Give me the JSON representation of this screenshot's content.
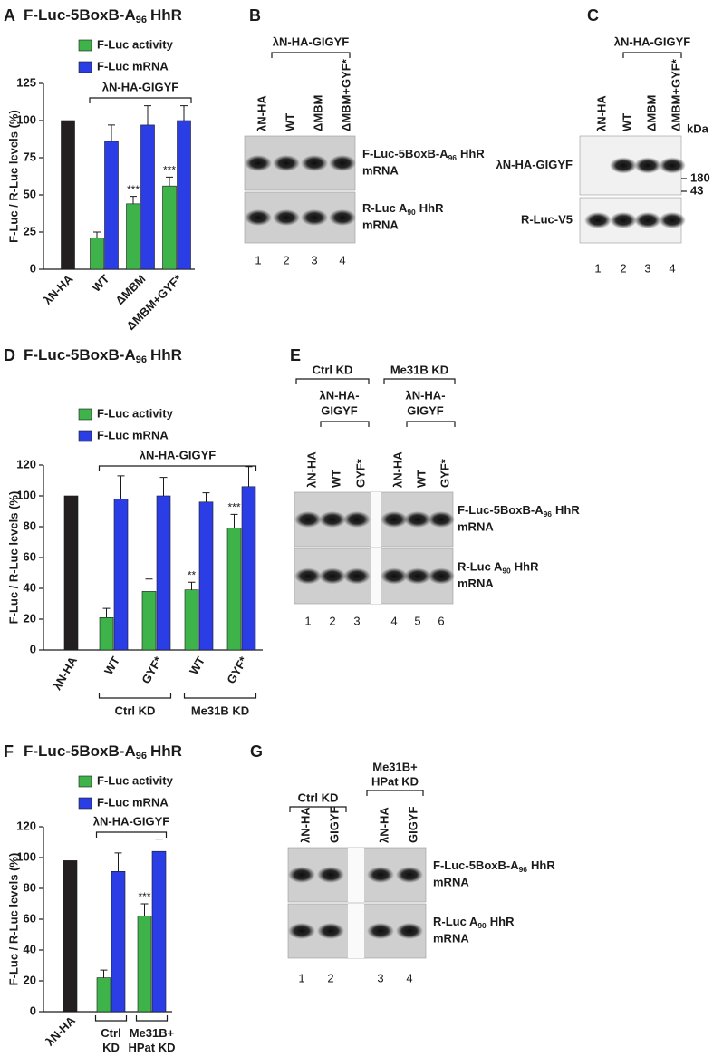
{
  "chart_data": [
    {
      "type": "bar",
      "panel": "A",
      "title": {
        "pre": "F-Luc-5BoxB-A",
        "sub": "96",
        "post": "HhR"
      },
      "y_label": "F-Luc / R-Luc levels (%)",
      "ylim": [
        0,
        125
      ],
      "yticks": [
        0,
        25,
        50,
        75,
        100,
        125
      ],
      "categories": [
        "λN-HA",
        "WT",
        "ΔMBM",
        "ΔMBM+GYF*"
      ],
      "series": [
        {
          "name": "F-Luc activity",
          "color": "#3db34a",
          "bar_colors": [
            "#231f20",
            "#3db34a",
            "#3db34a",
            "#3db34a"
          ],
          "values": [
            100,
            21,
            44,
            56
          ],
          "errors": [
            null,
            4,
            5,
            6
          ]
        },
        {
          "name": "F-Luc mRNA",
          "color": "#2b3ee6",
          "values": [
            null,
            86,
            97,
            100
          ],
          "errors": [
            null,
            11,
            13,
            10
          ]
        }
      ],
      "annotations": [
        null,
        null,
        "***",
        "***"
      ],
      "bracket_label": "λN-HA-GIGYF"
    },
    {
      "type": "bar",
      "panel": "D",
      "title": {
        "pre": "F-Luc-5BoxB-A",
        "sub": "96",
        "post": "HhR"
      },
      "y_label": "F-Luc / R-Luc levels (%)",
      "ylim": [
        0,
        120
      ],
      "yticks": [
        0,
        20,
        40,
        60,
        80,
        100,
        120
      ],
      "categories": [
        "λN-HA",
        "WT",
        "GYF*",
        "WT",
        "GYF*"
      ],
      "series": [
        {
          "name": "F-Luc activity",
          "color": "#3db34a",
          "bar_colors": [
            "#231f20",
            "#3db34a",
            "#3db34a",
            "#3db34a",
            "#3db34a"
          ],
          "values": [
            100,
            21,
            38,
            39,
            79
          ],
          "errors": [
            null,
            6,
            8,
            5,
            9
          ]
        },
        {
          "name": "F-Luc mRNA",
          "color": "#2b3ee6",
          "values": [
            null,
            98,
            100,
            96,
            106
          ],
          "errors": [
            null,
            15,
            12,
            6,
            13
          ]
        }
      ],
      "annotations": [
        null,
        null,
        null,
        "**",
        "***"
      ],
      "bracket_label": "λN-HA-GIGYF",
      "groups": [
        "Ctrl KD",
        "Me31B KD"
      ]
    },
    {
      "type": "bar",
      "panel": "F",
      "title": {
        "pre": "F-Luc-5BoxB-A",
        "sub": "96",
        "post": "HhR"
      },
      "y_label": "F-Luc / R-Luc levels (%)",
      "ylim": [
        0,
        120
      ],
      "yticks": [
        0,
        20,
        40,
        60,
        80,
        100,
        120
      ],
      "categories": [
        "λN-HA",
        "Ctrl KD",
        "Me31B+ HPat KD"
      ],
      "series": [
        {
          "name": "F-Luc activity",
          "color": "#3db34a",
          "bar_colors": [
            "#231f20",
            "#3db34a",
            "#3db34a"
          ],
          "values": [
            98,
            22,
            62
          ],
          "errors": [
            null,
            5,
            8
          ]
        },
        {
          "name": "F-Luc mRNA",
          "color": "#2b3ee6",
          "values": [
            null,
            91,
            104
          ],
          "errors": [
            null,
            12,
            8
          ]
        }
      ],
      "annotations": [
        null,
        null,
        "***"
      ],
      "bracket_label": "λN-HA-GIGYF"
    }
  ],
  "blots": [
    {
      "panel": "B",
      "header": "λN-HA-GIGYF",
      "lanes": [
        "λN-HA",
        "WT",
        "ΔMBM",
        "ΔMBM+GYF*"
      ],
      "rows": [
        {
          "pre": "F-Luc-5BoxB-A",
          "sub": "96",
          "post": "HhR",
          "line2": "mRNA",
          "bands": [
            true,
            true,
            true,
            true
          ]
        },
        {
          "pre": "R-Luc A",
          "sub": "90",
          "post": "HhR",
          "line2": "mRNA",
          "bands": [
            true,
            true,
            true,
            true
          ]
        }
      ],
      "lane_numbers": [
        1,
        2,
        3,
        4
      ]
    },
    {
      "panel": "C",
      "header": "λN-HA-GIGYF",
      "lanes": [
        "λN-HA",
        "WT",
        "ΔMBM",
        "ΔMBM+GYF*"
      ],
      "unit": "kDa",
      "rows": [
        {
          "label": "λN-HA-GIGYF",
          "marker": 180,
          "bands": [
            false,
            true,
            true,
            true
          ]
        },
        {
          "label": "R-Luc-V5",
          "marker": 43,
          "bands": [
            true,
            true,
            true,
            true
          ]
        }
      ],
      "lane_numbers": [
        1,
        2,
        3,
        4
      ]
    },
    {
      "panel": "E",
      "groups": [
        {
          "lines": [
            "Ctrl KD"
          ],
          "sub_lines": [
            "λN-HA-",
            "GIGYF"
          ]
        },
        {
          "lines": [
            "Me31B KD"
          ],
          "sub_lines": [
            "λN-HA-",
            "GIGYF"
          ]
        }
      ],
      "lanes": [
        "λN-HA",
        "WT",
        "GYF*",
        "λN-HA",
        "WT",
        "GYF*"
      ],
      "rows": [
        {
          "pre": "F-Luc-5BoxB-A",
          "sub": "96",
          "post": "HhR",
          "line2": "mRNA",
          "bands": [
            true,
            true,
            true,
            true,
            true,
            true
          ]
        },
        {
          "pre": "R-Luc A",
          "sub": "90",
          "post": "HhR",
          "line2": "mRNA",
          "bands": [
            true,
            true,
            true,
            true,
            true,
            true
          ]
        }
      ],
      "lane_numbers": [
        1,
        2,
        3,
        4,
        5,
        6
      ]
    },
    {
      "panel": "G",
      "groups": [
        {
          "lines": [
            "Ctrl KD"
          ]
        },
        {
          "lines": [
            "Me31B+",
            "HPat KD"
          ]
        }
      ],
      "lanes": [
        "λN-HA",
        "GIGYF",
        "λN-HA",
        "GIGYF"
      ],
      "rows": [
        {
          "pre": "F-Luc-5BoxB-A",
          "sub": "96",
          "post": "HhR",
          "line2": "mRNA",
          "bands": [
            true,
            true,
            true,
            true
          ]
        },
        {
          "pre": "R-Luc A",
          "sub": "90",
          "post": "HhR",
          "line2": "mRNA",
          "bands": [
            true,
            true,
            true,
            true
          ]
        }
      ],
      "lane_numbers": [
        1,
        2,
        3,
        4
      ]
    }
  ]
}
